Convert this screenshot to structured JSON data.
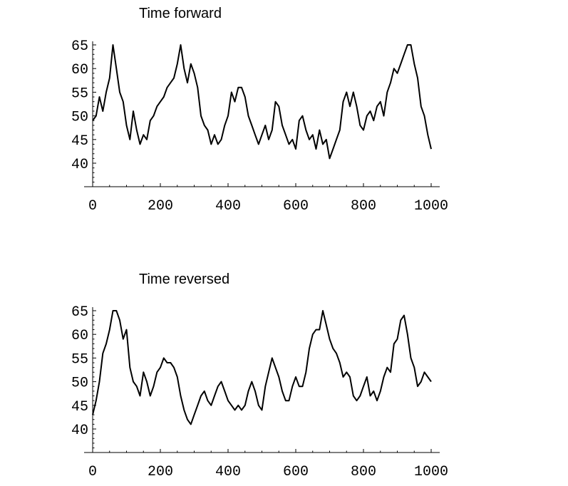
{
  "chart_data": [
    {
      "type": "line",
      "title": "Time forward",
      "xlabel": "",
      "ylabel": "",
      "xlim": [
        0,
        1000
      ],
      "ylim": [
        35,
        65
      ],
      "xticks": [
        0,
        200,
        400,
        600,
        800,
        1000
      ],
      "yticks": [
        40,
        45,
        50,
        55,
        60,
        65
      ],
      "grid": false,
      "series": [
        {
          "x": [
            0,
            10,
            20,
            30,
            40,
            50,
            60,
            70,
            80,
            90,
            100,
            110,
            120,
            130,
            140,
            150,
            160,
            170,
            180,
            190,
            200,
            210,
            220,
            230,
            240,
            250,
            260,
            270,
            280,
            290,
            300,
            310,
            320,
            330,
            340,
            350,
            360,
            370,
            380,
            390,
            400,
            410,
            420,
            430,
            440,
            450,
            460,
            470,
            480,
            490,
            500,
            510,
            520,
            530,
            540,
            550,
            560,
            570,
            580,
            590,
            600,
            610,
            620,
            630,
            640,
            650,
            660,
            670,
            680,
            690,
            700,
            710,
            720,
            730,
            740,
            750,
            760,
            770,
            780,
            790,
            800,
            810,
            820,
            830,
            840,
            850,
            860,
            870,
            880,
            890,
            900,
            910,
            920,
            930,
            940,
            950,
            960,
            970,
            980,
            990,
            1000
          ],
          "y": [
            49,
            50,
            54,
            51,
            55,
            58,
            65,
            60,
            55,
            53,
            48,
            45,
            51,
            47,
            44,
            46,
            45,
            49,
            50,
            52,
            53,
            54,
            56,
            57,
            58,
            61,
            65,
            60,
            57,
            61,
            59,
            56,
            50,
            48,
            47,
            44,
            46,
            44,
            45,
            48,
            50,
            55,
            53,
            56,
            56,
            54,
            50,
            48,
            46,
            44,
            46,
            48,
            45,
            47,
            53,
            52,
            48,
            46,
            44,
            45,
            43,
            49,
            50,
            47,
            45,
            46,
            43,
            47,
            44,
            45,
            41,
            43,
            45,
            47,
            53,
            55,
            52,
            55,
            52,
            48,
            47,
            50,
            51,
            49,
            52,
            53,
            50,
            55,
            57,
            60,
            59,
            61,
            63,
            65,
            65,
            61,
            58,
            52,
            50,
            46,
            43
          ]
        }
      ]
    },
    {
      "type": "line",
      "title": "Time reversed",
      "xlabel": "",
      "ylabel": "",
      "xlim": [
        0,
        1000
      ],
      "ylim": [
        35,
        65
      ],
      "xticks": [
        0,
        200,
        400,
        600,
        800,
        1000
      ],
      "yticks": [
        40,
        45,
        50,
        55,
        60,
        65
      ],
      "grid": false,
      "series": [
        {
          "x": [
            0,
            10,
            20,
            30,
            40,
            50,
            60,
            70,
            80,
            90,
            100,
            110,
            120,
            130,
            140,
            150,
            160,
            170,
            180,
            190,
            200,
            210,
            220,
            230,
            240,
            250,
            260,
            270,
            280,
            290,
            300,
            310,
            320,
            330,
            340,
            350,
            360,
            370,
            380,
            390,
            400,
            410,
            420,
            430,
            440,
            450,
            460,
            470,
            480,
            490,
            500,
            510,
            520,
            530,
            540,
            550,
            560,
            570,
            580,
            590,
            600,
            610,
            620,
            630,
            640,
            650,
            660,
            670,
            680,
            690,
            700,
            710,
            720,
            730,
            740,
            750,
            760,
            770,
            780,
            790,
            800,
            810,
            820,
            830,
            840,
            850,
            860,
            870,
            880,
            890,
            900,
            910,
            920,
            930,
            940,
            950,
            960,
            970,
            980,
            990,
            1000
          ],
          "y": [
            43,
            46,
            50,
            56,
            58,
            61,
            65,
            65,
            63,
            59,
            61,
            53,
            50,
            49,
            47,
            52,
            50,
            47,
            49,
            52,
            53,
            55,
            54,
            54,
            53,
            51,
            47,
            44,
            42,
            41,
            43,
            45,
            47,
            48,
            46,
            45,
            47,
            49,
            50,
            48,
            46,
            45,
            44,
            45,
            44,
            45,
            48,
            50,
            48,
            45,
            44,
            49,
            52,
            55,
            53,
            51,
            48,
            46,
            46,
            49,
            51,
            49,
            49,
            52,
            57,
            60,
            61,
            61,
            65,
            62,
            59,
            57,
            56,
            54,
            51,
            52,
            51,
            47,
            46,
            47,
            49,
            51,
            47,
            48,
            46,
            48,
            51,
            53,
            52,
            58,
            59,
            63,
            64,
            60,
            55,
            53,
            49,
            50,
            52,
            51,
            50
          ]
        }
      ]
    }
  ]
}
